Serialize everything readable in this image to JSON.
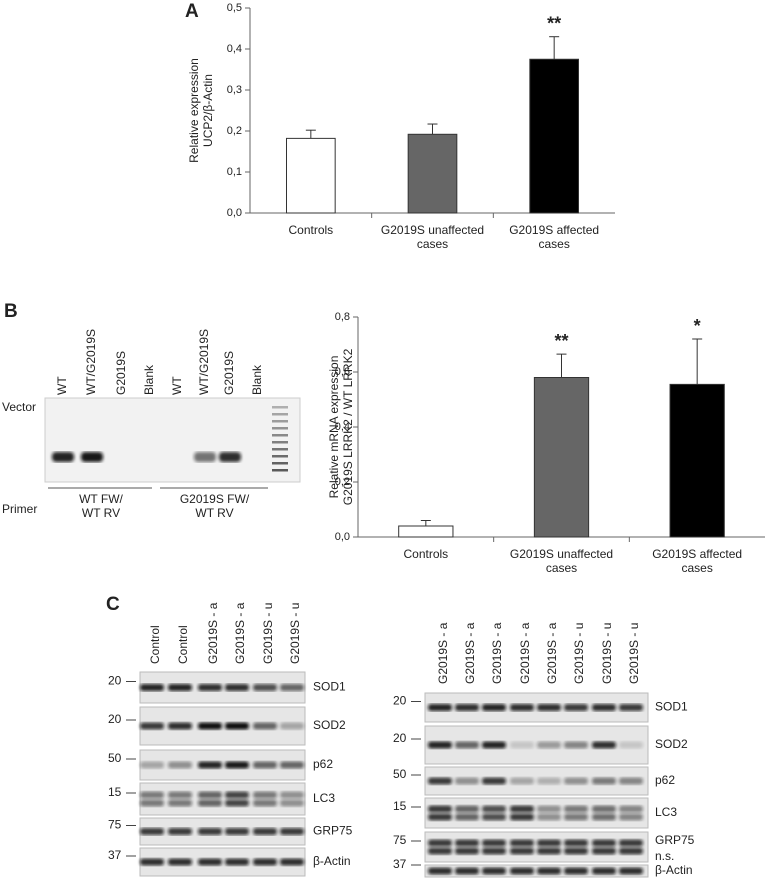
{
  "chart_data": [
    {
      "type": "bar",
      "ylabel": [
        "Relative expression",
        "UCP2/β-Actin"
      ],
      "categories": [
        "Controls",
        "G2019S unaffected cases",
        "G2019S affected cases"
      ],
      "values": [
        0.182,
        0.192,
        0.375
      ],
      "errors": [
        0.02,
        0.025,
        0.055
      ],
      "colors": [
        "#ffffff",
        "#666666",
        "#000000"
      ],
      "value_annotations": [
        null,
        null,
        "**"
      ],
      "ylim": [
        0,
        0.5
      ],
      "yticks": [
        {
          "value": 0,
          "label": "0,0"
        },
        {
          "value": 0.1,
          "label": "0,1"
        },
        {
          "value": 0.2,
          "label": "0,2"
        },
        {
          "value": 0.3,
          "label": "0,3"
        },
        {
          "value": 0.4,
          "label": "0,4"
        },
        {
          "value": 0.5,
          "label": "0,5"
        }
      ],
      "grid": false
    },
    {
      "type": "bar",
      "ylabel": [
        "Relative mRNA expression",
        "G2019S LRRK2 / WT LRRK2"
      ],
      "categories": [
        "Controls",
        "G2019S unaffected cases",
        "G2019S affected cases"
      ],
      "values": [
        0.04,
        0.58,
        0.555
      ],
      "errors": [
        0.02,
        0.085,
        0.165
      ],
      "colors": [
        "#ffffff",
        "#666666",
        "#000000"
      ],
      "value_annotations": [
        null,
        "**",
        "*"
      ],
      "ylim": [
        0,
        0.8
      ],
      "yticks": [
        {
          "value": 0,
          "label": "0,0"
        },
        {
          "value": 0.2,
          "label": "0,2"
        },
        {
          "value": 0.4,
          "label": "0,4"
        },
        {
          "value": 0.6,
          "label": "0,6"
        },
        {
          "value": 0.8,
          "label": "0,8"
        }
      ],
      "grid": false
    }
  ],
  "panel_labels": [
    "A",
    "B",
    "C"
  ],
  "gel": {
    "vector_label": "Vector",
    "primer_label": "Primer",
    "lanes": [
      "WT",
      "WT/G2019S",
      "G2019S",
      "Blank",
      "WT",
      "WT/G2019S",
      "G2019S",
      "Blank"
    ],
    "primers": [
      "WT FW/ WT RV",
      "G2019S FW/ WT RV"
    ]
  },
  "blots": [
    {
      "lanes": [
        "Control",
        "Control",
        "G2019S - a",
        "G2019S - a",
        "G2019S - u",
        "G2019S - u"
      ],
      "rows": [
        {
          "label": "SOD1",
          "marker": 20
        },
        {
          "label": "SOD2",
          "marker": 20
        },
        {
          "label": "p62",
          "marker": 50
        },
        {
          "label": "LC3",
          "marker": 15
        },
        {
          "label": "GRP75",
          "marker": 75
        },
        {
          "label": "β-Actin",
          "marker": 37
        }
      ]
    },
    {
      "lanes": [
        "G2019S - a",
        "G2019S - a",
        "G2019S - a",
        "G2019S - a",
        "G2019S - a",
        "G2019S - u",
        "G2019S - u",
        "G2019S - u"
      ],
      "rows": [
        {
          "label": "SOD1",
          "marker": 20
        },
        {
          "label": "SOD2",
          "marker": 20
        },
        {
          "label": "p62",
          "marker": 50
        },
        {
          "label": "LC3",
          "marker": 15
        },
        {
          "label": "GRP75",
          "note": "n.s.",
          "marker": 75
        },
        {
          "label": "β-Actin",
          "marker": 37
        }
      ]
    }
  ]
}
